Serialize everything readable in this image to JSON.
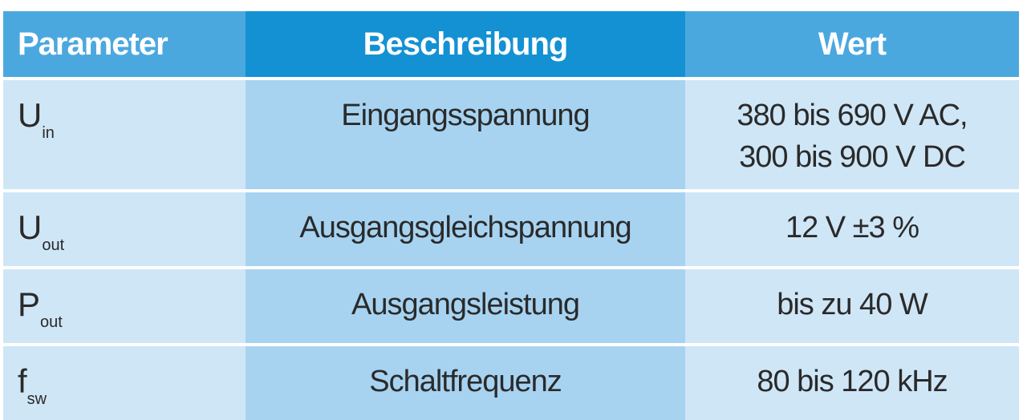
{
  "table": {
    "headers": {
      "parameter": "Parameter",
      "description": "Beschreibung",
      "value": "Wert"
    },
    "rows": [
      {
        "symbol": "U",
        "subscript": "in",
        "description": "Eingangsspannung",
        "value_line1": "380 bis 690 V AC,",
        "value_line2": "300 bis 900 V DC"
      },
      {
        "symbol": "U",
        "subscript": "out",
        "description": "Ausgangsgleichspannung",
        "value_line1": "12 V ±3 %"
      },
      {
        "symbol": "P",
        "subscript": "out",
        "description": "Ausgangsleistung",
        "value_line1": "bis zu 40 W"
      },
      {
        "symbol": "f",
        "subscript": "sw",
        "description": "Schaltfrequenz",
        "value_line1": "80 bis 120 kHz"
      }
    ]
  },
  "colors": {
    "header_light": "#4ba8df",
    "header_dark": "#1391d3",
    "cell_light": "#cfe6f7",
    "cell_mid": "#a7d3f1"
  }
}
